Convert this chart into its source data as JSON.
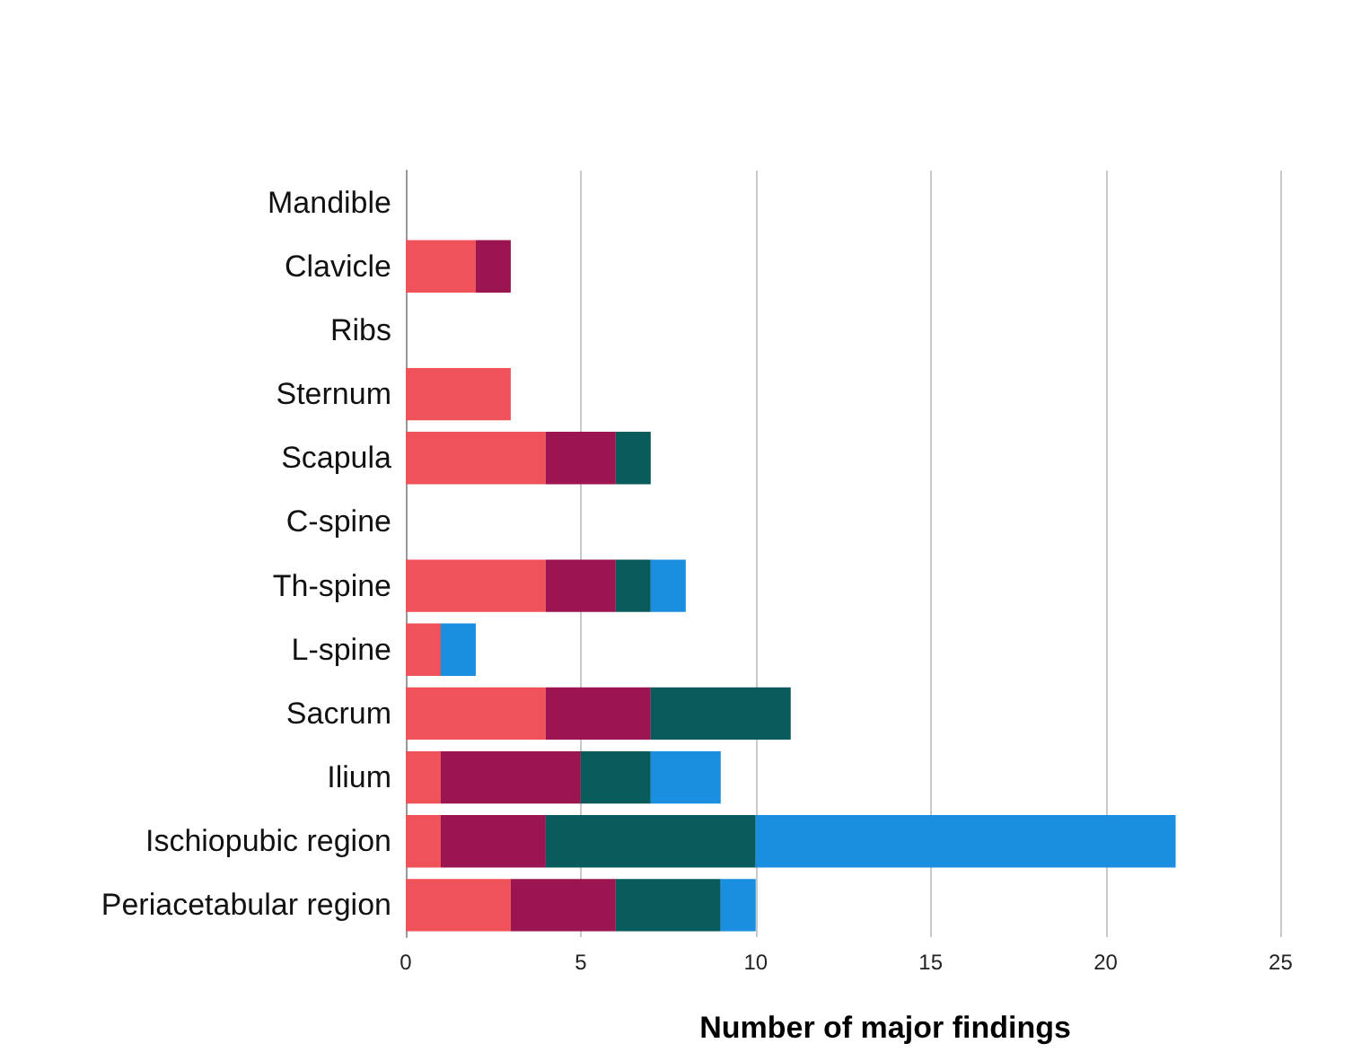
{
  "chart_data": {
    "type": "bar",
    "orientation": "horizontal",
    "stacked": true,
    "xlabel": "Number of major findings",
    "categories": [
      "Mandible",
      "Clavicle",
      "Ribs",
      "Sternum",
      "Scapula",
      "C-spine",
      "Th-spine",
      "L-spine",
      "Sacrum",
      "Ilium",
      "Ischiopubic region",
      "Periacetabular region"
    ],
    "series": [
      {
        "color": "#f0525a",
        "values": [
          null,
          2,
          null,
          3,
          4,
          null,
          4,
          1,
          4,
          1,
          1,
          3
        ]
      },
      {
        "color": "#9b1550",
        "values": [
          null,
          1,
          null,
          null,
          2,
          null,
          2,
          null,
          3,
          4,
          3,
          3
        ]
      },
      {
        "color": "#0a5c5c",
        "values": [
          null,
          null,
          null,
          null,
          1,
          null,
          1,
          null,
          4,
          2,
          6,
          3
        ]
      },
      {
        "color": "#1a8fe0",
        "values": [
          null,
          null,
          null,
          null,
          null,
          null,
          1,
          1,
          null,
          2,
          12,
          1
        ]
      }
    ],
    "xlim": [
      0,
      27.4
    ],
    "xticks": [
      0,
      5,
      10,
      15,
      20,
      25
    ],
    "grid": "x"
  }
}
